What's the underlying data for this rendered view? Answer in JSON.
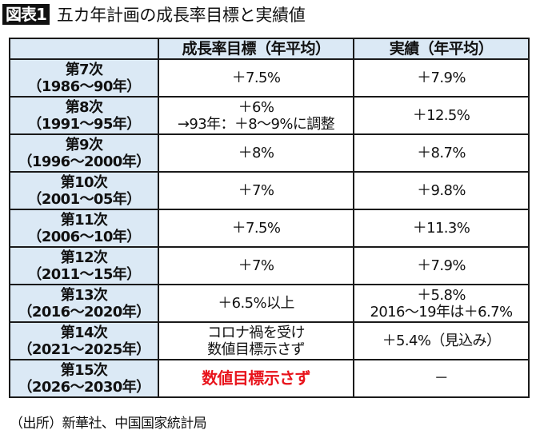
{
  "header": {
    "badge": "図表1",
    "title": "五カ年計画の成長率目標と実績値"
  },
  "table": {
    "columns": [
      "",
      "成長率目標（年平均）",
      "実績（年平均）"
    ],
    "rows": [
      {
        "plan": "第7次",
        "period": "（1986～90年）",
        "target": [
          "＋7.5%"
        ],
        "actual": [
          "＋7.9%"
        ]
      },
      {
        "plan": "第8次",
        "period": "（1991～95年）",
        "target": [
          "＋6%",
          "→93年：＋8～9%に調整"
        ],
        "actual": [
          "＋12.5%"
        ]
      },
      {
        "plan": "第9次",
        "period": "（1996～2000年）",
        "target": [
          "＋8%"
        ],
        "actual": [
          "＋8.7%"
        ]
      },
      {
        "plan": "第10次",
        "period": "（2001～05年）",
        "target": [
          "＋7%"
        ],
        "actual": [
          "＋9.8%"
        ]
      },
      {
        "plan": "第11次",
        "period": "（2006～10年）",
        "target": [
          "＋7.5%"
        ],
        "actual": [
          "＋11.3%"
        ]
      },
      {
        "plan": "第12次",
        "period": "（2011～15年）",
        "target": [
          "＋7%"
        ],
        "actual": [
          "＋7.9%"
        ]
      },
      {
        "plan": "第13次",
        "period": "（2016～2020年）",
        "target": [
          "＋6.5%以上"
        ],
        "actual": [
          "＋5.8%",
          "2016～19年は＋6.7%"
        ]
      },
      {
        "plan": "第14次",
        "period": "（2021～2025年）",
        "target": [
          "コロナ禍を受け",
          "数値目標示さず"
        ],
        "actual": [
          "＋5.4%（見込み）"
        ]
      },
      {
        "plan": "第15次",
        "period": "（2026～2030年）",
        "target": [
          "数値目標示さず"
        ],
        "actual": [
          "－"
        ],
        "target_highlight": true
      }
    ]
  },
  "source": "（出所）新華社、中国国家統計局",
  "colors": {
    "header_bg": "#dbe9f5",
    "highlight_red": "#e8141c",
    "badge_bg": "#111111"
  }
}
